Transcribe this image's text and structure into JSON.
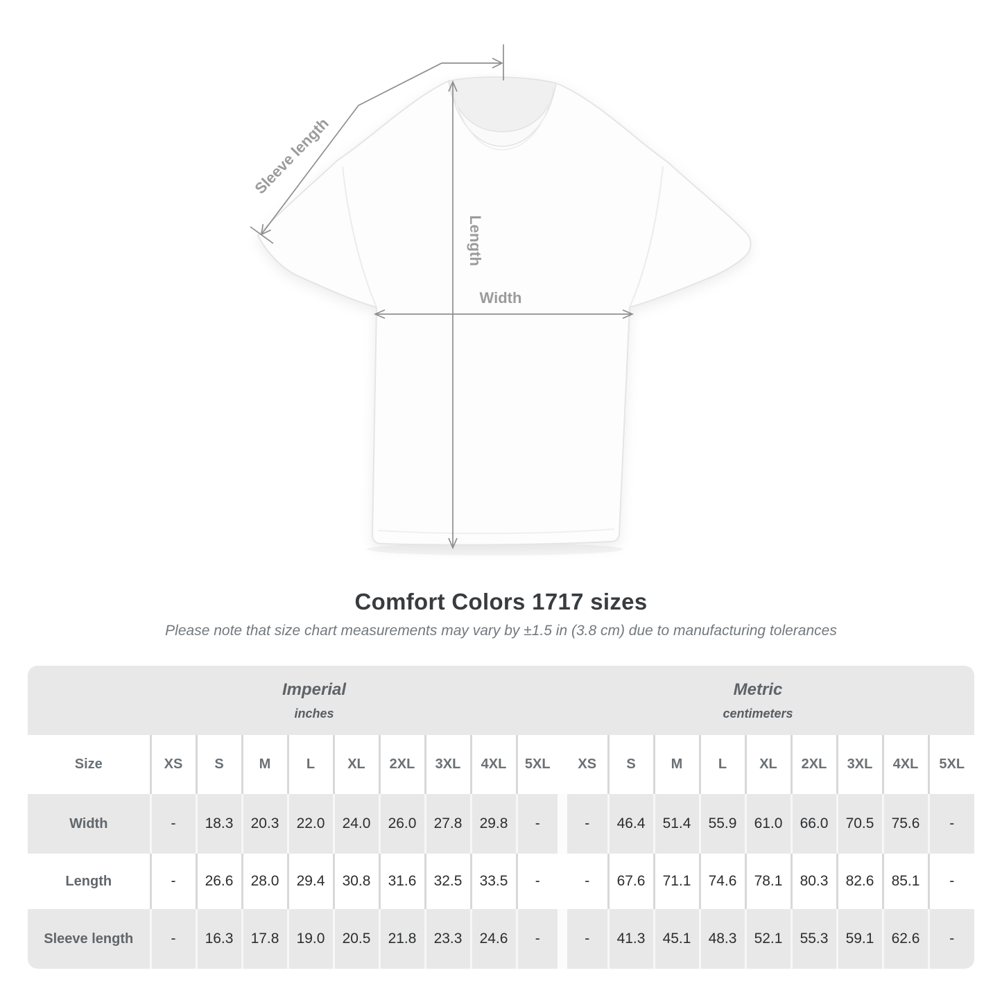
{
  "page": {
    "title": "Comfort Colors 1717 sizes",
    "subtitle": "Please note that size chart measurements may vary by ±1.5 in (3.8 cm) due to manufacturing tolerances"
  },
  "diagram": {
    "sleeve_length_label": "Sleeve length",
    "length_label": "Length",
    "width_label": "Width",
    "line_color": "#8e8e8e",
    "label_color": "#9b9b9b"
  },
  "chart_data": {
    "type": "table",
    "title": "Comfort Colors 1717 sizes",
    "corner_header": "Size",
    "sizes": [
      "XS",
      "S",
      "M",
      "L",
      "XL",
      "2XL",
      "3XL",
      "4XL",
      "5XL"
    ],
    "groups": [
      {
        "name": "Imperial",
        "unit": "inches"
      },
      {
        "name": "Metric",
        "unit": "centimeters"
      }
    ],
    "rows": [
      {
        "label": "Width",
        "imperial": [
          "-",
          "18.3",
          "20.3",
          "22.0",
          "24.0",
          "26.0",
          "27.8",
          "29.8",
          "-"
        ],
        "metric": [
          "-",
          "46.4",
          "51.4",
          "55.9",
          "61.0",
          "66.0",
          "70.5",
          "75.6",
          "-"
        ]
      },
      {
        "label": "Length",
        "imperial": [
          "-",
          "26.6",
          "28.0",
          "29.4",
          "30.8",
          "31.6",
          "32.5",
          "33.5",
          "-"
        ],
        "metric": [
          "-",
          "67.6",
          "71.1",
          "74.6",
          "78.1",
          "80.3",
          "82.6",
          "85.1",
          "-"
        ]
      },
      {
        "label": "Sleeve length",
        "imperial": [
          "-",
          "16.3",
          "17.8",
          "19.0",
          "20.5",
          "21.8",
          "23.3",
          "24.6",
          "-"
        ],
        "metric": [
          "-",
          "41.3",
          "45.1",
          "48.3",
          "52.1",
          "55.3",
          "59.1",
          "62.6",
          "-"
        ]
      }
    ],
    "layout": {
      "row_band_color": "#e8e8e8",
      "value_color": "#2b2d2f",
      "header_color": "#64696d",
      "group_header_position": "top",
      "alternating_rows": true
    }
  }
}
